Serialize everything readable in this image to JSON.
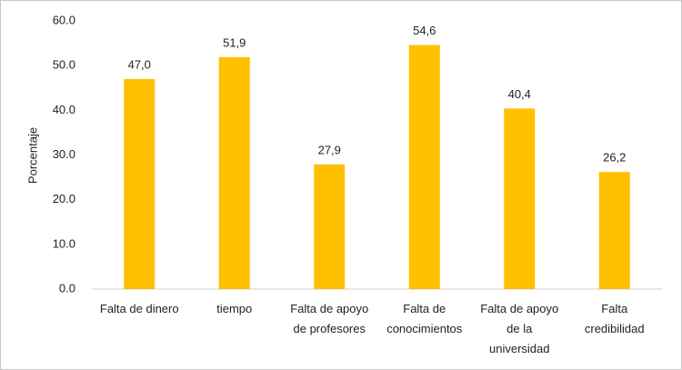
{
  "chart_data": {
    "type": "bar",
    "y_label": "Porcentaje",
    "categories": [
      "Falta de dinero",
      "tiempo",
      "Falta de apoyo de profesores",
      "Falta de conocimientos",
      "Falta de apoyo de la universidad",
      "Falta credibilidad"
    ],
    "values": [
      47.0,
      51.9,
      27.9,
      54.6,
      40.4,
      26.2
    ],
    "value_labels": [
      "47,0",
      "51,9",
      "27,9",
      "54,6",
      "40,4",
      "26,2"
    ],
    "color": "#ffc000",
    "ylim": [
      0,
      60
    ],
    "yticks": [
      {
        "value": 0,
        "label": "0.0"
      },
      {
        "value": 10,
        "label": "10.0"
      },
      {
        "value": 20,
        "label": "20.0"
      },
      {
        "value": 30,
        "label": "30.0"
      },
      {
        "value": 40,
        "label": "40.0"
      },
      {
        "value": 50,
        "label": "50.0"
      },
      {
        "value": 60,
        "label": "60.0"
      }
    ],
    "grid": false
  }
}
